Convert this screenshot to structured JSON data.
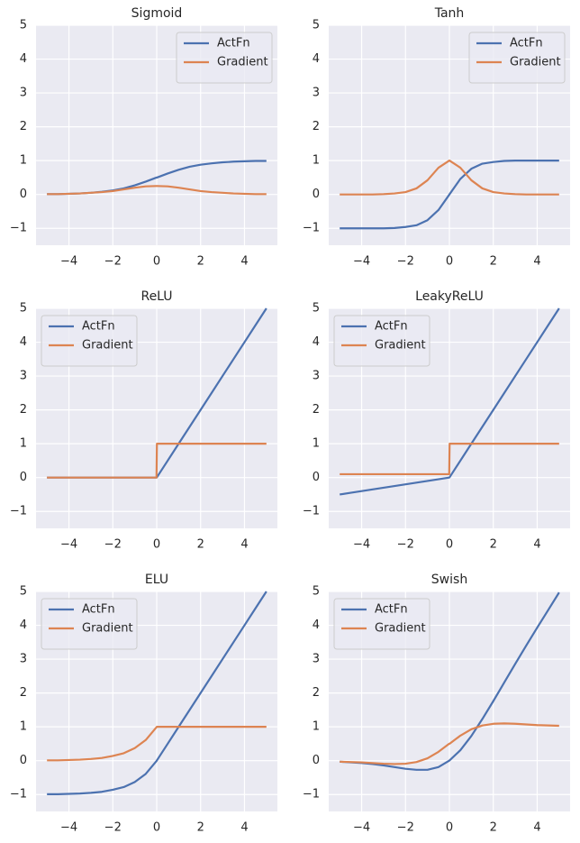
{
  "chart_data": [
    {
      "type": "line",
      "title": "Sigmoid",
      "legend": "upper right",
      "grid": true,
      "x": [
        -5,
        -4.5,
        -4,
        -3.5,
        -3,
        -2.5,
        -2,
        -1.5,
        -1,
        -0.5,
        -0.01,
        0.01,
        0.5,
        1,
        1.5,
        2,
        2.5,
        3,
        3.5,
        4,
        4.5,
        5
      ],
      "series": [
        {
          "name": "ActFn",
          "color": "#4c72b0",
          "values": [
            0.01,
            0.01,
            0.02,
            0.03,
            0.05,
            0.08,
            0.12,
            0.18,
            0.27,
            0.38,
            0.5,
            0.5,
            0.62,
            0.73,
            0.82,
            0.88,
            0.92,
            0.95,
            0.97,
            0.98,
            0.99,
            0.99
          ]
        },
        {
          "name": "Gradient",
          "color": "#dd8452",
          "values": [
            0.01,
            0.01,
            0.02,
            0.03,
            0.05,
            0.07,
            0.1,
            0.15,
            0.2,
            0.24,
            0.25,
            0.25,
            0.24,
            0.2,
            0.15,
            0.1,
            0.07,
            0.05,
            0.03,
            0.02,
            0.01,
            0.01
          ]
        }
      ],
      "xlim": [
        -5.5,
        5.5
      ],
      "ylim": [
        -1.5,
        5
      ],
      "xticks": [
        {
          "value": -4,
          "label": "−4"
        },
        {
          "value": -2,
          "label": "−2"
        },
        0,
        2,
        4
      ],
      "yticks": [
        {
          "value": -1,
          "label": "−1"
        },
        0,
        1,
        2,
        3,
        4,
        5
      ]
    },
    {
      "type": "line",
      "title": "Tanh",
      "legend": "upper right",
      "grid": true,
      "x": [
        -5,
        -4.5,
        -4,
        -3.5,
        -3,
        -2.5,
        -2,
        -1.5,
        -1,
        -0.5,
        -0.01,
        0.01,
        0.5,
        1,
        1.5,
        2,
        2.5,
        3,
        3.5,
        4,
        4.5,
        5
      ],
      "series": [
        {
          "name": "ActFn",
          "color": "#4c72b0",
          "values": [
            -1,
            -1,
            -1,
            -1,
            -1,
            -0.99,
            -0.96,
            -0.91,
            -0.76,
            -0.46,
            -0.01,
            0.01,
            0.46,
            0.76,
            0.91,
            0.96,
            0.99,
            1,
            1,
            1,
            1,
            1
          ]
        },
        {
          "name": "Gradient",
          "color": "#dd8452",
          "values": [
            0,
            0,
            0,
            0,
            0.01,
            0.03,
            0.07,
            0.18,
            0.42,
            0.79,
            1,
            1,
            0.79,
            0.42,
            0.18,
            0.07,
            0.03,
            0.01,
            0,
            0,
            0,
            0
          ]
        }
      ],
      "xlim": [
        -5.5,
        5.5
      ],
      "ylim": [
        -1.5,
        5
      ],
      "xticks": [
        {
          "value": -4,
          "label": "−4"
        },
        {
          "value": -2,
          "label": "−2"
        },
        0,
        2,
        4
      ],
      "yticks": [
        {
          "value": -1,
          "label": "−1"
        },
        0,
        1,
        2,
        3,
        4,
        5
      ]
    },
    {
      "type": "line",
      "title": "ReLU",
      "legend": "upper left",
      "grid": true,
      "x": [
        -5,
        -4.5,
        -4,
        -3.5,
        -3,
        -2.5,
        -2,
        -1.5,
        -1,
        -0.5,
        -0.01,
        0.01,
        0.5,
        1,
        1.5,
        2,
        2.5,
        3,
        3.5,
        4,
        4.5,
        5
      ],
      "series": [
        {
          "name": "ActFn",
          "color": "#4c72b0",
          "values": [
            0,
            0,
            0,
            0,
            0,
            0,
            0,
            0,
            0,
            0,
            0,
            0.01,
            0.5,
            1,
            1.5,
            2,
            2.5,
            3,
            3.5,
            4,
            4.5,
            5
          ]
        },
        {
          "name": "Gradient",
          "color": "#dd8452",
          "values": [
            0,
            0,
            0,
            0,
            0,
            0,
            0,
            0,
            0,
            0,
            0,
            1,
            1,
            1,
            1,
            1,
            1,
            1,
            1,
            1,
            1,
            1
          ]
        }
      ],
      "xlim": [
        -5.5,
        5.5
      ],
      "ylim": [
        -1.5,
        5
      ],
      "xticks": [
        {
          "value": -4,
          "label": "−4"
        },
        {
          "value": -2,
          "label": "−2"
        },
        0,
        2,
        4
      ],
      "yticks": [
        {
          "value": -1,
          "label": "−1"
        },
        0,
        1,
        2,
        3,
        4,
        5
      ]
    },
    {
      "type": "line",
      "title": "LeakyReLU",
      "legend": "upper left",
      "grid": true,
      "x": [
        -5,
        -4.5,
        -4,
        -3.5,
        -3,
        -2.5,
        -2,
        -1.5,
        -1,
        -0.5,
        -0.01,
        0.01,
        0.5,
        1,
        1.5,
        2,
        2.5,
        3,
        3.5,
        4,
        4.5,
        5
      ],
      "series": [
        {
          "name": "ActFn",
          "color": "#4c72b0",
          "values": [
            -0.5,
            -0.45,
            -0.4,
            -0.35,
            -0.3,
            -0.25,
            -0.2,
            -0.15,
            -0.1,
            -0.05,
            0,
            0.01,
            0.5,
            1,
            1.5,
            2,
            2.5,
            3,
            3.5,
            4,
            4.5,
            5
          ]
        },
        {
          "name": "Gradient",
          "color": "#dd8452",
          "values": [
            0.1,
            0.1,
            0.1,
            0.1,
            0.1,
            0.1,
            0.1,
            0.1,
            0.1,
            0.1,
            0.1,
            1,
            1,
            1,
            1,
            1,
            1,
            1,
            1,
            1,
            1,
            1
          ]
        }
      ],
      "xlim": [
        -5.5,
        5.5
      ],
      "ylim": [
        -1.5,
        5
      ],
      "xticks": [
        {
          "value": -4,
          "label": "−4"
        },
        {
          "value": -2,
          "label": "−2"
        },
        0,
        2,
        4
      ],
      "yticks": [
        {
          "value": -1,
          "label": "−1"
        },
        0,
        1,
        2,
        3,
        4,
        5
      ]
    },
    {
      "type": "line",
      "title": "ELU",
      "legend": "upper left",
      "grid": true,
      "x": [
        -5,
        -4.5,
        -4,
        -3.5,
        -3,
        -2.5,
        -2,
        -1.5,
        -1,
        -0.5,
        -0.01,
        0.01,
        0.5,
        1,
        1.5,
        2,
        2.5,
        3,
        3.5,
        4,
        4.5,
        5
      ],
      "series": [
        {
          "name": "ActFn",
          "color": "#4c72b0",
          "values": [
            -0.99,
            -0.99,
            -0.98,
            -0.97,
            -0.95,
            -0.92,
            -0.86,
            -0.78,
            -0.63,
            -0.39,
            -0.01,
            0.01,
            0.5,
            1,
            1.5,
            2,
            2.5,
            3,
            3.5,
            4,
            4.5,
            5
          ]
        },
        {
          "name": "Gradient",
          "color": "#dd8452",
          "values": [
            0.01,
            0.01,
            0.02,
            0.03,
            0.05,
            0.08,
            0.14,
            0.22,
            0.37,
            0.61,
            0.99,
            1,
            1,
            1,
            1,
            1,
            1,
            1,
            1,
            1,
            1,
            1
          ]
        }
      ],
      "xlim": [
        -5.5,
        5.5
      ],
      "ylim": [
        -1.5,
        5
      ],
      "xticks": [
        {
          "value": -4,
          "label": "−4"
        },
        {
          "value": -2,
          "label": "−2"
        },
        0,
        2,
        4
      ],
      "yticks": [
        {
          "value": -1,
          "label": "−1"
        },
        0,
        1,
        2,
        3,
        4,
        5
      ]
    },
    {
      "type": "line",
      "title": "Swish",
      "legend": "upper left",
      "grid": true,
      "x": [
        -5,
        -4.5,
        -4,
        -3.5,
        -3,
        -2.5,
        -2,
        -1.5,
        -1,
        -0.5,
        -0.01,
        0.01,
        0.5,
        1,
        1.5,
        2,
        2.5,
        3,
        3.5,
        4,
        4.5,
        5
      ],
      "series": [
        {
          "name": "ActFn",
          "color": "#4c72b0",
          "values": [
            -0.03,
            -0.05,
            -0.07,
            -0.1,
            -0.14,
            -0.19,
            -0.24,
            -0.27,
            -0.27,
            -0.19,
            0,
            0.01,
            0.31,
            0.73,
            1.23,
            1.76,
            2.31,
            2.86,
            3.4,
            3.93,
            4.45,
            4.97
          ]
        },
        {
          "name": "Gradient",
          "color": "#dd8452",
          "values": [
            -0.03,
            -0.04,
            -0.05,
            -0.07,
            -0.09,
            -0.1,
            -0.09,
            -0.04,
            0.07,
            0.26,
            0.5,
            0.5,
            0.74,
            0.93,
            1.04,
            1.09,
            1.1,
            1.09,
            1.07,
            1.05,
            1.04,
            1.03
          ]
        }
      ],
      "xlim": [
        -5.5,
        5.5
      ],
      "ylim": [
        -1.5,
        5
      ],
      "xticks": [
        {
          "value": -4,
          "label": "−4"
        },
        {
          "value": -2,
          "label": "−2"
        },
        0,
        2,
        4
      ],
      "yticks": [
        {
          "value": -1,
          "label": "−1"
        },
        0,
        1,
        2,
        3,
        4,
        5
      ]
    }
  ]
}
